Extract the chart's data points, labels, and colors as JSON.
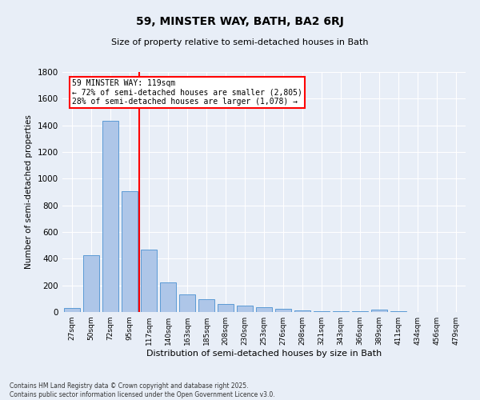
{
  "title": "59, MINSTER WAY, BATH, BA2 6RJ",
  "subtitle": "Size of property relative to semi-detached houses in Bath",
  "xlabel": "Distribution of semi-detached houses by size in Bath",
  "ylabel": "Number of semi-detached properties",
  "bar_labels": [
    "27sqm",
    "50sqm",
    "72sqm",
    "95sqm",
    "117sqm",
    "140sqm",
    "163sqm",
    "185sqm",
    "208sqm",
    "230sqm",
    "253sqm",
    "276sqm",
    "298sqm",
    "321sqm",
    "343sqm",
    "366sqm",
    "389sqm",
    "411sqm",
    "434sqm",
    "456sqm",
    "479sqm"
  ],
  "bar_values": [
    30,
    425,
    1435,
    905,
    470,
    225,
    135,
    95,
    60,
    48,
    35,
    22,
    15,
    8,
    5,
    5,
    18,
    5,
    3,
    2,
    2
  ],
  "bar_color": "#aec6e8",
  "bar_edge_color": "#5b9bd5",
  "annotation_text": "59 MINSTER WAY: 119sqm\n← 72% of semi-detached houses are smaller (2,805)\n28% of semi-detached houses are larger (1,078) →",
  "ylim": [
    0,
    1800
  ],
  "yticks": [
    0,
    200,
    400,
    600,
    800,
    1000,
    1200,
    1400,
    1600,
    1800
  ],
  "background_color": "#e8eef7",
  "footer_line1": "Contains HM Land Registry data © Crown copyright and database right 2025.",
  "footer_line2": "Contains public sector information licensed under the Open Government Licence v3.0."
}
